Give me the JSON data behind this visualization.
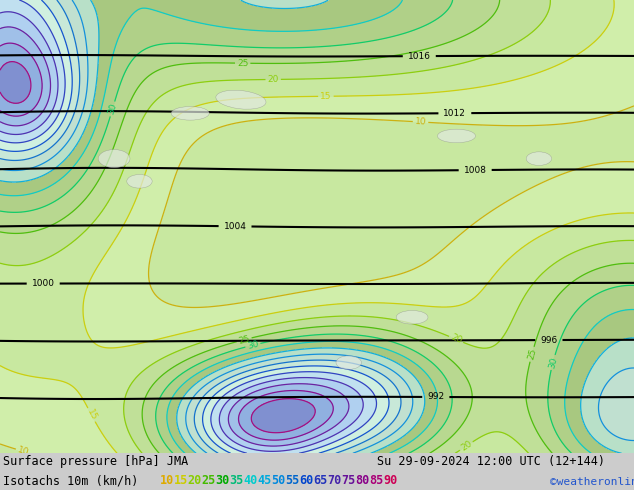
{
  "title_left": "Surface pressure [hPa] JMA",
  "title_right": "Su 29-09-2024 12:00 UTC (12+144)",
  "legend_label": "Isotachs 10m (km/h)",
  "legend_values": [
    "10",
    "15",
    "20",
    "25",
    "30",
    "35",
    "40",
    "45",
    "50",
    "55",
    "60",
    "65",
    "70",
    "75",
    "80",
    "85",
    "90"
  ],
  "legend_colors": [
    "#ddaa00",
    "#cccc00",
    "#88cc00",
    "#44bb00",
    "#00aa00",
    "#00bb77",
    "#00cccc",
    "#00aadd",
    "#0088dd",
    "#0066cc",
    "#0044cc",
    "#2233bb",
    "#4422aa",
    "#661199",
    "#880088",
    "#aa0077",
    "#cc0055"
  ],
  "copyright": "©weatheronline.co.uk",
  "land_color": "#c8e8a0",
  "sea_color": "#d8d8d8",
  "fig_width": 6.34,
  "fig_height": 4.9,
  "dpi": 100,
  "bottom_bar_color": "#c8c8c8",
  "wind_fill_colors_below10": "#c8e8a0",
  "pressure_line_color": "#000000",
  "isotach_contour_colors": {
    "10": "#ccaa00",
    "15": "#cccc00",
    "20": "#88cc00",
    "25": "#44bb00",
    "30": "#00cc66",
    "35": "#00cccc",
    "40": "#00aadd",
    "45": "#0088dd",
    "50": "#0066cc",
    "55": "#0044cc",
    "60": "#2233bb",
    "65": "#4422aa",
    "70": "#661199",
    "75": "#880088",
    "80": "#aa0077",
    "85": "#cc0055",
    "90": "#ee0033"
  }
}
